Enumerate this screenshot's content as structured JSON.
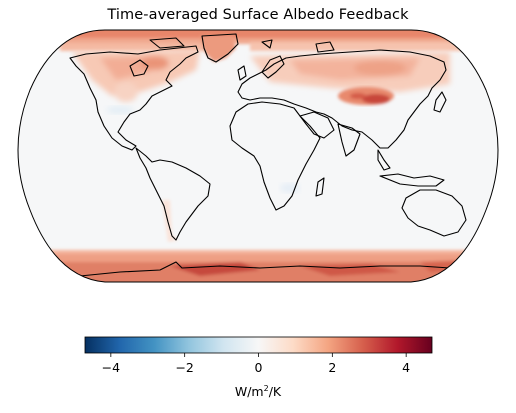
{
  "figure": {
    "title": "Time-averaged Surface Albedo Feedback"
  },
  "map": {
    "projection": "Robinson",
    "coastlines": true,
    "field_name": "",
    "highlights": [
      {
        "region": "Arctic / Greenland",
        "level": "strong positive"
      },
      {
        "region": "Antarctic coast / sea ice margin",
        "level": "strong positive"
      },
      {
        "region": "Tibetan Plateau",
        "level": "strong positive"
      },
      {
        "region": "Northern Eurasia",
        "level": "moderate positive"
      },
      {
        "region": "Northern North America",
        "level": "moderate positive"
      },
      {
        "region": "Tropics / mid-latitude oceans",
        "level": "near zero"
      }
    ]
  },
  "colorbar": {
    "colormap": "RdBu_r",
    "orientation": "horizontal",
    "range": [
      -4.7,
      4.7
    ],
    "ticks": [
      -4,
      -2,
      0,
      2,
      4
    ],
    "tick_labels": [
      "−4",
      "−2",
      "0",
      "2",
      "4"
    ],
    "label_base": "W/m",
    "label_sup": "2",
    "label_tail": "/K",
    "colors": [
      "#053061",
      "#2166ac",
      "#4393c3",
      "#92c5de",
      "#d1e5f0",
      "#f7f7f7",
      "#fddbc7",
      "#f4a582",
      "#d6604d",
      "#b2182b",
      "#67001f"
    ]
  }
}
